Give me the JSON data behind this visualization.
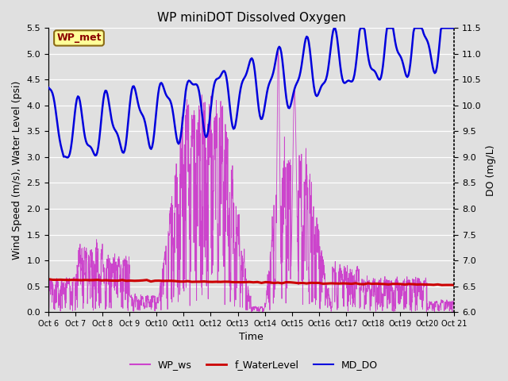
{
  "title": "WP miniDOT Dissolved Oxygen",
  "xlabel": "Time",
  "ylabel_left": "Wind Speed (m/s), Water Level (psi)",
  "ylabel_right": "DO (mg/L)",
  "annotation": "WP_met",
  "ylim_left": [
    0.0,
    5.5
  ],
  "ylim_right": [
    6.0,
    11.5
  ],
  "legend_labels": [
    "WP_ws",
    "f_WaterLevel",
    "MD_DO"
  ],
  "legend_colors": [
    "#CC44CC",
    "#CC0000",
    "#0000DD"
  ],
  "bg_color": "#E0E0E0",
  "grid_color": "#FFFFFF",
  "annotation_fg": "#8B0000",
  "annotation_bg": "#FFFF99",
  "annotation_edge": "#8B6914",
  "title_fontsize": 11,
  "axis_fontsize": 9,
  "tick_fontsize": 8,
  "xtick_fontsize": 7,
  "right_spine_dotted": true,
  "yticks_left": [
    0.0,
    0.5,
    1.0,
    1.5,
    2.0,
    2.5,
    3.0,
    3.5,
    4.0,
    4.5,
    5.0,
    5.5
  ],
  "yticks_right": [
    6.0,
    6.5,
    7.0,
    7.5,
    8.0,
    8.5,
    9.0,
    9.5,
    10.0,
    10.5,
    11.0,
    11.5
  ],
  "n_days": 15
}
